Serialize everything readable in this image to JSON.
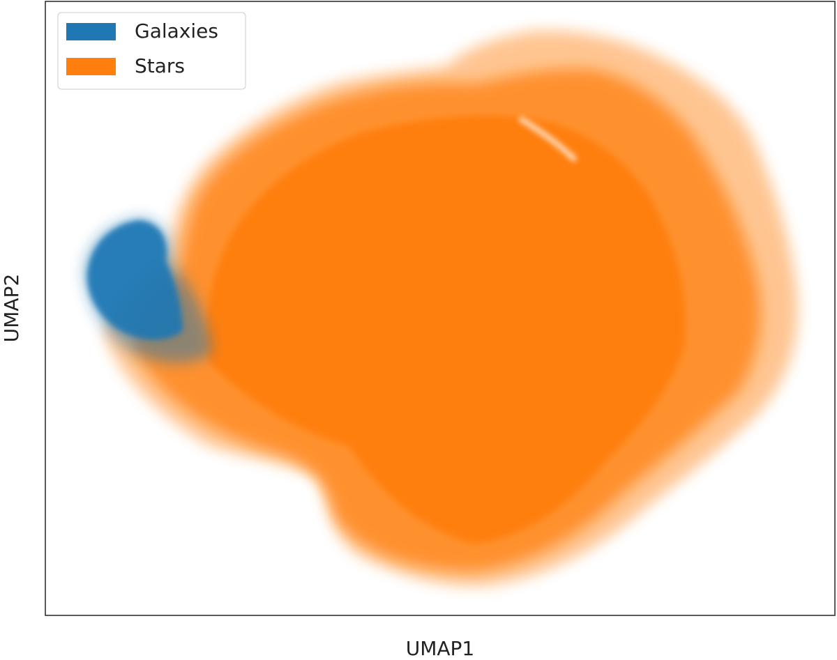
{
  "chart_data": {
    "type": "scatter",
    "xlabel": "UMAP1",
    "ylabel": "UMAP2",
    "series": [
      {
        "name": "Galaxies",
        "color": "#1f77b4"
      },
      {
        "name": "Stars",
        "color": "#ff7f0e"
      }
    ],
    "legend": "upper left"
  }
}
